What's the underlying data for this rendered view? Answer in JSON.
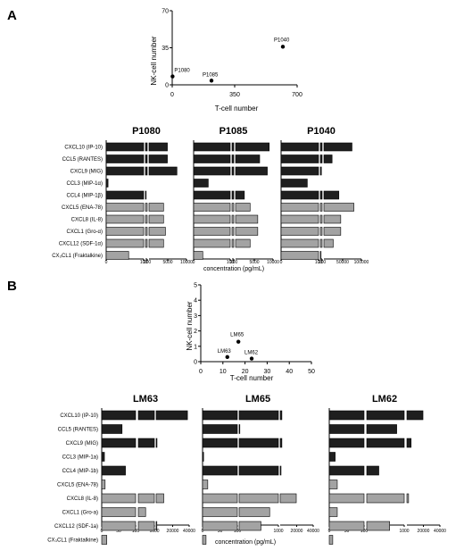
{
  "panels": [
    {
      "letter": "A",
      "scatter": {
        "ylabel": "NK-cell number",
        "xlabel": "T-cell number",
        "xlim": [
          0,
          700
        ],
        "ylim": [
          0,
          70
        ],
        "xticks": [
          "0",
          "350",
          "700"
        ],
        "yticks": [
          "0",
          "35",
          "70"
        ],
        "points": [
          {
            "label": "P1080",
            "x": 2,
            "y": 8
          },
          {
            "label": "P1085",
            "x": 220,
            "y": 4
          },
          {
            "label": "P1040",
            "x": 620,
            "y": 36
          }
        ]
      },
      "row_labels": [
        "CXCL10 (IP-10)",
        "CCL5 (RANTES)",
        "CXCL9 (MIG)",
        "CCL3 (MIP-1α)",
        "CCL4 (MIP-1β)",
        "CXCL5 (ENA-78)",
        "CXCL8 (IL-8)",
        "CXCL1 (Gro-α)",
        "CXCL12 (SDF-1α)",
        "CX₃CL1 (Fraktalkine)"
      ],
      "conc_label": "concentration (pg/mL)",
      "subcharts": [
        {
          "title": "P1080",
          "ticks": [
            "0",
            "100",
            "200",
            "5000",
            "10000"
          ],
          "values": [
            5000,
            5000,
            7500,
            5,
            140,
            4000,
            4000,
            4500,
            4000,
            60
          ]
        },
        {
          "title": "P1085",
          "ticks": [
            "0",
            "100",
            "200",
            "5000",
            "10000"
          ],
          "values": [
            9000,
            6500,
            8500,
            40,
            2500,
            4000,
            6000,
            6000,
            4000,
            25
          ]
        },
        {
          "title": "P1040",
          "ticks": [
            "0",
            "100",
            "200",
            "50000",
            "100000"
          ],
          "values": [
            75000,
            22000,
            160,
            70,
            40000,
            80000,
            45000,
            45000,
            25000,
            120
          ]
        }
      ]
    },
    {
      "letter": "B",
      "scatter": {
        "ylabel": "NK-cell number",
        "xlabel": "T-cell number",
        "xlim": [
          0,
          50
        ],
        "ylim": [
          0,
          5
        ],
        "xticks": [
          "0",
          "10",
          "20",
          "30",
          "40",
          "50"
        ],
        "yticks": [
          "0",
          "1",
          "2",
          "3",
          "4",
          "5"
        ],
        "points": [
          {
            "label": "LM63",
            "x": 12,
            "y": 0.3
          },
          {
            "label": "LM65",
            "x": 17,
            "y": 1.3
          },
          {
            "label": "LM62",
            "x": 23,
            "y": 0.2
          }
        ]
      },
      "row_labels": [
        "CXCL10 (IP-10)",
        "CCL5 (RANTES)",
        "CXCL9 (MIG)",
        "CCL3 (MIP-1a)",
        "CCL4 (MIP-1b)",
        "CXCL5 (ENA-78)",
        "CXCL8 (IL-8)",
        "CXCL1 (Gro-a)",
        "CXCL12 (SDF-1a)",
        "CX₃CL1 (Fraktalkine)"
      ],
      "conc_label": "concentration (pg/mL)",
      "subcharts": [
        {
          "title": "LM63",
          "ticks": [
            "0",
            "50",
            "100",
            "1000",
            "20000",
            "40000"
          ],
          "values": [
            38000,
            60,
            2000,
            8,
            70,
            10,
            10000,
            510,
            1300,
            15
          ]
        },
        {
          "title": "LM65",
          "ticks": [
            "0",
            "50",
            "100",
            "1000",
            "20000",
            "40000"
          ],
          "values": [
            3000,
            110,
            3000,
            3,
            2000,
            15,
            20000,
            800,
            600,
            10
          ]
        },
        {
          "title": "LM62",
          "ticks": [
            "0",
            "50",
            "100",
            "1000",
            "20000",
            "40000"
          ],
          "values": [
            20000,
            820,
            6000,
            17,
            390,
            23,
            3000,
            23,
            650,
            10
          ]
        }
      ]
    }
  ],
  "colors": {
    "dark_bar": "#1f1f1f",
    "light_bar": "#a3a3a3",
    "axis": "#000000"
  }
}
